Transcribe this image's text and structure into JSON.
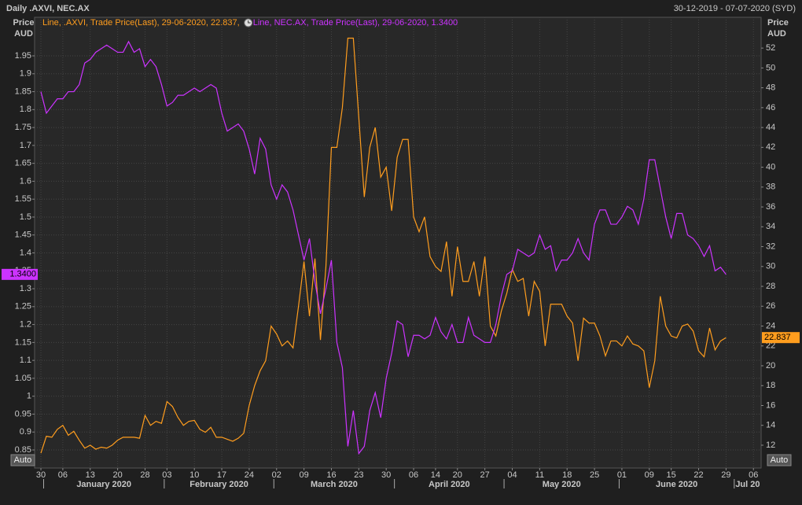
{
  "header": {
    "title": "Daily .AXVI, NEC.AX",
    "date_range": "30-12-2019 - 07-07-2020 (SYD)"
  },
  "controls": {
    "auto_label": "Auto"
  },
  "chart_data": {
    "type": "line",
    "y_label": [
      "Price",
      "AUD"
    ],
    "y2_label": [
      "Price",
      "AUD"
    ],
    "grid": true,
    "x": [
      0,
      1,
      2,
      3,
      4,
      5,
      6,
      7,
      8,
      9,
      10,
      11,
      12,
      13,
      14,
      15,
      16,
      17,
      18,
      19,
      20,
      21,
      22,
      23,
      24,
      25,
      26,
      27,
      28,
      29,
      30,
      31,
      32,
      33,
      34,
      35,
      36,
      37,
      38,
      39,
      40,
      41,
      42,
      43,
      44,
      45,
      46,
      47,
      48,
      49,
      50,
      51,
      52,
      53,
      54,
      55,
      56,
      57,
      58,
      59,
      60,
      61,
      62,
      63,
      64,
      65,
      66,
      67,
      68,
      69,
      70,
      71,
      72,
      73,
      74,
      75,
      76,
      77,
      78,
      79,
      80,
      81,
      82,
      83,
      84,
      85,
      86,
      87,
      88,
      89,
      90,
      91,
      92,
      93,
      94,
      95,
      96,
      97,
      98,
      99,
      100,
      101,
      102,
      103,
      104,
      105,
      106,
      107,
      108,
      109,
      110,
      111,
      112,
      113,
      114,
      115,
      116,
      117,
      118,
      119,
      120,
      121,
      122,
      123,
      124,
      125
    ],
    "xlim": [
      -1.15,
      131.4
    ],
    "xticks": [
      {
        "value": 0,
        "label": "30"
      },
      {
        "value": 4,
        "label": "06"
      },
      {
        "value": 9,
        "label": "13"
      },
      {
        "value": 14,
        "label": "20"
      },
      {
        "value": 19,
        "label": "28"
      },
      {
        "value": 23,
        "label": "03"
      },
      {
        "value": 28,
        "label": "10"
      },
      {
        "value": 33,
        "label": "17"
      },
      {
        "value": 38,
        "label": "24"
      },
      {
        "value": 43,
        "label": "02"
      },
      {
        "value": 48,
        "label": "09"
      },
      {
        "value": 53,
        "label": "16"
      },
      {
        "value": 58,
        "label": "23"
      },
      {
        "value": 63,
        "label": "30"
      },
      {
        "value": 68,
        "label": "06"
      },
      {
        "value": 72,
        "label": "14"
      },
      {
        "value": 76,
        "label": "20"
      },
      {
        "value": 81,
        "label": "27"
      },
      {
        "value": 86,
        "label": "04"
      },
      {
        "value": 91,
        "label": "11"
      },
      {
        "value": 96,
        "label": "18"
      },
      {
        "value": 101,
        "label": "25"
      },
      {
        "value": 106,
        "label": "01"
      },
      {
        "value": 111,
        "label": "09"
      },
      {
        "value": 115,
        "label": "15"
      },
      {
        "value": 120,
        "label": "22"
      },
      {
        "value": 125,
        "label": "29"
      },
      {
        "value": 130,
        "label": "06"
      }
    ],
    "month_ticks": [
      {
        "value": 1,
        "label": "January 2020"
      },
      {
        "value": 23,
        "label": "February 2020"
      },
      {
        "value": 43,
        "label": "March 2020"
      },
      {
        "value": 65,
        "label": "April 2020"
      },
      {
        "value": 85,
        "label": "May 2020"
      },
      {
        "value": 106,
        "label": "June 2020"
      },
      {
        "value": 127,
        "label": "Jul 20"
      }
    ],
    "ylim": [
      0.7995,
      2.0576
    ],
    "yticks": [
      0.85,
      0.9,
      0.95,
      1,
      1.05,
      1.1,
      1.15,
      1.2,
      1.25,
      1.3,
      1.35,
      1.4,
      1.45,
      1.5,
      1.55,
      1.6,
      1.65,
      1.7,
      1.75,
      1.8,
      1.85,
      1.9,
      1.95
    ],
    "y2lim": [
      9.7,
      55.1
    ],
    "y2ticks": [
      12,
      14,
      16,
      18,
      20,
      22,
      24,
      26,
      28,
      30,
      32,
      34,
      36,
      38,
      40,
      42,
      44,
      46,
      48,
      50,
      52
    ],
    "series": [
      {
        "name": ".AXVI",
        "axis": "y2",
        "color": "#ff9d1e",
        "legend": "Line, .AXVI, Trade Price(Last), 29-06-2020, 22.837,",
        "last_value": 22.837,
        "values": [
          11.2,
          12.9,
          12.8,
          13.6,
          14.0,
          13.0,
          13.4,
          12.5,
          11.7,
          12.0,
          11.6,
          11.8,
          11.7,
          12.0,
          12.5,
          12.8,
          12.8,
          12.8,
          12.7,
          15.0,
          14.0,
          14.4,
          14.2,
          16.4,
          15.9,
          14.8,
          14.0,
          14.4,
          14.5,
          13.6,
          13.3,
          13.8,
          12.8,
          12.8,
          12.6,
          12.4,
          12.7,
          13.2,
          16.0,
          18.0,
          19.5,
          20.5,
          24.0,
          23.2,
          22.0,
          22.5,
          21.8,
          26.0,
          30.5,
          25.0,
          30.8,
          22.6,
          30.0,
          42.0,
          42.0,
          46.0,
          53.0,
          53.0,
          45.0,
          37.0,
          42.0,
          44.0,
          39.0,
          40.0,
          35.6,
          41.0,
          42.8,
          42.8,
          35.0,
          33.5,
          35.0,
          31.0,
          30.0,
          29.5,
          32.5,
          27.0,
          32.0,
          28.5,
          28.5,
          30.5,
          27.0,
          31.0,
          24.0,
          23.0,
          25.5,
          27.3,
          29.7,
          28.5,
          28.8,
          25.0,
          28.5,
          27.5,
          22.0,
          26.2,
          26.2,
          26.2,
          25.0,
          24.3,
          20.5,
          24.8,
          24.3,
          24.3,
          23.0,
          21.0,
          22.5,
          22.5,
          22.0,
          23.0,
          22.2,
          22.0,
          21.5,
          17.8,
          20.5,
          27.0,
          24.0,
          23.0,
          22.8,
          24.0,
          24.2,
          23.5,
          21.5,
          20.9,
          23.8,
          21.6,
          22.5,
          22.837
        ]
      },
      {
        "name": "NEC.AX",
        "axis": "y",
        "color": "#cc33ff",
        "legend": "Line, NEC.AX, Trade Price(Last), 29-06-2020, 1.3400",
        "last_value": {
          "value": 1.34,
          "label": "1.3400"
        },
        "values": [
          1.85,
          1.79,
          1.81,
          1.83,
          1.83,
          1.85,
          1.85,
          1.87,
          1.93,
          1.94,
          1.96,
          1.97,
          1.98,
          1.97,
          1.96,
          1.96,
          1.99,
          1.96,
          1.97,
          1.92,
          1.94,
          1.92,
          1.87,
          1.81,
          1.82,
          1.84,
          1.84,
          1.85,
          1.86,
          1.85,
          1.86,
          1.87,
          1.86,
          1.79,
          1.74,
          1.75,
          1.76,
          1.74,
          1.69,
          1.62,
          1.72,
          1.69,
          1.59,
          1.55,
          1.59,
          1.57,
          1.52,
          1.45,
          1.38,
          1.44,
          1.32,
          1.23,
          1.3,
          1.38,
          1.15,
          1.08,
          0.86,
          0.96,
          0.84,
          0.86,
          0.96,
          1.01,
          0.94,
          1.05,
          1.12,
          1.21,
          1.2,
          1.11,
          1.17,
          1.17,
          1.16,
          1.17,
          1.22,
          1.18,
          1.16,
          1.2,
          1.15,
          1.15,
          1.22,
          1.17,
          1.16,
          1.15,
          1.15,
          1.2,
          1.28,
          1.34,
          1.35,
          1.41,
          1.4,
          1.39,
          1.4,
          1.45,
          1.41,
          1.42,
          1.35,
          1.38,
          1.38,
          1.4,
          1.44,
          1.4,
          1.38,
          1.48,
          1.52,
          1.52,
          1.48,
          1.48,
          1.5,
          1.53,
          1.52,
          1.48,
          1.55,
          1.66,
          1.66,
          1.58,
          1.5,
          1.44,
          1.51,
          1.51,
          1.45,
          1.44,
          1.42,
          1.39,
          1.42,
          1.35,
          1.36,
          1.34
        ]
      }
    ]
  }
}
